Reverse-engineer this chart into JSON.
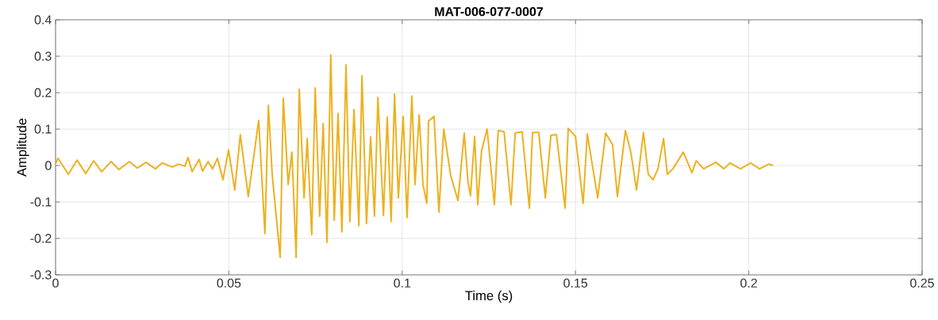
{
  "chart_data": {
    "type": "line",
    "title": "MAT-006-077-0007",
    "xlabel": "Time (s)",
    "ylabel": "Amplitude",
    "xlim": [
      0,
      0.25
    ],
    "ylim": [
      -0.3,
      0.4
    ],
    "xticks": [
      0,
      0.05,
      0.1,
      0.15,
      0.2,
      0.25
    ],
    "yticks": [
      -0.3,
      -0.2,
      -0.1,
      0,
      0.1,
      0.2,
      0.3,
      0.4
    ],
    "grid": true,
    "line_style": "solid",
    "marker": "none",
    "series": [
      {
        "color": "#edb120",
        "x": [
          0,
          0.0007,
          0.0037,
          0.0062,
          0.0087,
          0.011,
          0.0133,
          0.016,
          0.0183,
          0.0213,
          0.0236,
          0.0261,
          0.0288,
          0.0307,
          0.0337,
          0.0355,
          0.0373,
          0.0382,
          0.0394,
          0.0414,
          0.0424,
          0.044,
          0.0453,
          0.0467,
          0.0483,
          0.0499,
          0.0517,
          0.0533,
          0.0556,
          0.0586,
          0.0604,
          0.0614,
          0.0625,
          0.0648,
          0.0657,
          0.0671,
          0.0682,
          0.0694,
          0.0703,
          0.0717,
          0.0726,
          0.0739,
          0.0749,
          0.0762,
          0.0772,
          0.0783,
          0.0794,
          0.0804,
          0.0815,
          0.0826,
          0.0838,
          0.0849,
          0.0861,
          0.0875,
          0.0884,
          0.0897,
          0.0909,
          0.092,
          0.093,
          0.0946,
          0.0957,
          0.0968,
          0.0978,
          0.0989,
          0.1003,
          0.1014,
          0.1028,
          0.1037,
          0.1049,
          0.106,
          0.1071,
          0.1076,
          0.1092,
          0.1106,
          0.112,
          0.114,
          0.1161,
          0.1179,
          0.119,
          0.1197,
          0.1209,
          0.1218,
          0.1229,
          0.1245,
          0.1266,
          0.1277,
          0.1294,
          0.1314,
          0.1326,
          0.1346,
          0.1367,
          0.1376,
          0.1394,
          0.1413,
          0.1429,
          0.1445,
          0.147,
          0.1479,
          0.15,
          0.1522,
          0.1534,
          0.1564,
          0.1587,
          0.1607,
          0.1621,
          0.1644,
          0.166,
          0.1676,
          0.1696,
          0.171,
          0.1724,
          0.1738,
          0.1754,
          0.1765,
          0.1781,
          0.1793,
          0.1811,
          0.1836,
          0.1848,
          0.187,
          0.1905,
          0.1928,
          0.1946,
          0.1976,
          0.2005,
          0.2031,
          0.2058,
          0.207
        ],
        "values": [
          0.005,
          0.02,
          -0.024,
          0.015,
          -0.022,
          0.013,
          -0.017,
          0.011,
          -0.011,
          0.011,
          -0.007,
          0.009,
          -0.009,
          0.007,
          -0.004,
          0.004,
          -0.002,
          0.022,
          -0.017,
          0.017,
          -0.015,
          0.011,
          -0.009,
          0.02,
          -0.039,
          0.043,
          -0.067,
          0.085,
          -0.085,
          0.124,
          -0.187,
          0.165,
          -0.024,
          -0.252,
          0.185,
          -0.052,
          0.037,
          -0.252,
          0.209,
          -0.089,
          0.074,
          -0.19,
          0.213,
          -0.139,
          0.115,
          -0.211,
          0.304,
          -0.15,
          0.143,
          -0.182,
          0.276,
          -0.154,
          0.154,
          -0.165,
          0.246,
          -0.159,
          0.078,
          -0.139,
          0.187,
          -0.137,
          0.133,
          -0.154,
          0.196,
          -0.089,
          0.135,
          -0.143,
          0.191,
          -0.052,
          0.139,
          -0.052,
          -0.104,
          0.122,
          0.135,
          -0.128,
          0.1,
          -0.028,
          -0.096,
          0.089,
          -0.046,
          -0.083,
          0.08,
          -0.107,
          0.041,
          0.1,
          -0.107,
          0.096,
          0.093,
          -0.107,
          0.089,
          0.093,
          -0.117,
          0.091,
          0.091,
          -0.089,
          0.083,
          0.085,
          -0.117,
          0.102,
          0.08,
          -0.104,
          0.087,
          -0.089,
          0.089,
          0.057,
          -0.085,
          0.096,
          0.035,
          -0.067,
          0.091,
          -0.024,
          -0.039,
          -0.009,
          0.074,
          -0.024,
          -0.009,
          0.009,
          0.037,
          -0.02,
          0.013,
          -0.009,
          0.009,
          -0.009,
          0.007,
          -0.009,
          0.007,
          -0.009,
          0.004,
          0
        ]
      }
    ]
  }
}
